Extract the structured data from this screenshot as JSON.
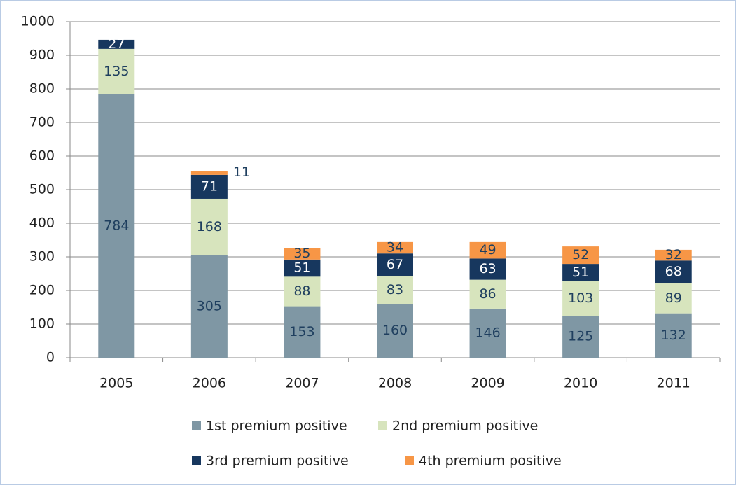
{
  "chart_data": {
    "type": "stacked_bar",
    "categories": [
      "2005",
      "2006",
      "2007",
      "2008",
      "2009",
      "2010",
      "2011"
    ],
    "series": [
      {
        "name": "1st premium positive",
        "color": "#7f97a4",
        "values": [
          784,
          305,
          153,
          160,
          146,
          125,
          132
        ]
      },
      {
        "name": "2nd premium positive",
        "color": "#d7e4bd",
        "values": [
          135,
          168,
          88,
          83,
          86,
          103,
          89
        ]
      },
      {
        "name": "3rd premium positive",
        "color": "#17375e",
        "values": [
          27,
          71,
          51,
          67,
          63,
          51,
          68
        ]
      },
      {
        "name": "4th premium positive",
        "color": "#f79646",
        "values": [
          null,
          11,
          35,
          34,
          49,
          52,
          32
        ]
      }
    ],
    "ylim": [
      0,
      1000
    ],
    "yticks": [
      0,
      100,
      200,
      300,
      400,
      500,
      600,
      700,
      800,
      900,
      1000
    ],
    "grid": true
  }
}
